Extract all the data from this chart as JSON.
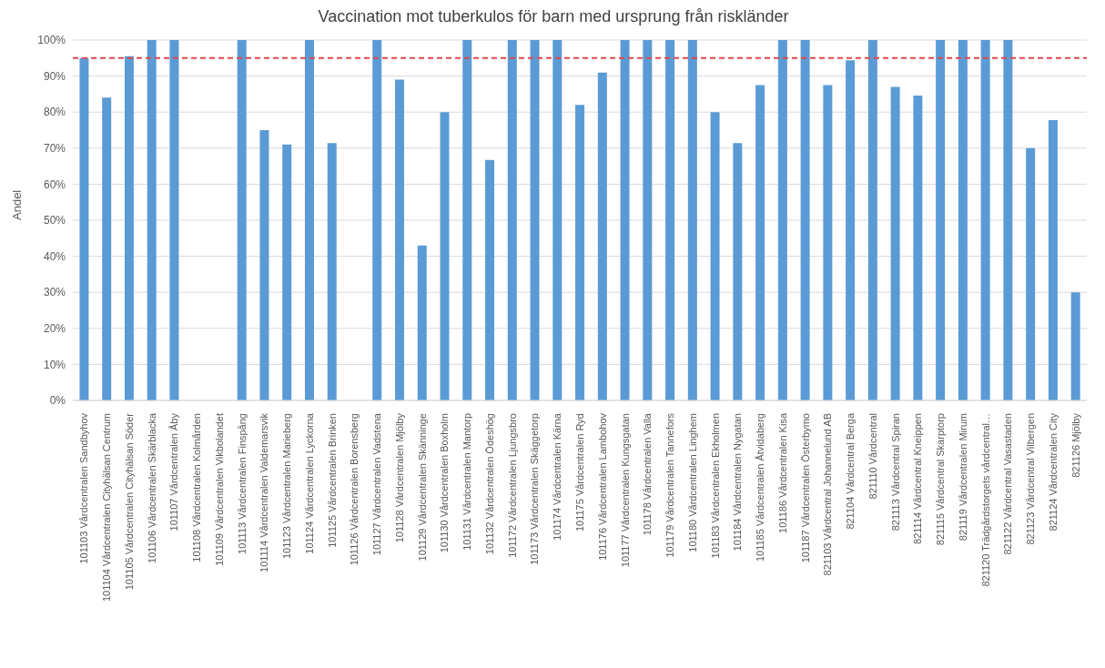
{
  "chart_data": {
    "type": "bar",
    "title": "Vaccination mot tuberkulos för barn med ursprung från riskländer",
    "ylabel": "Andel",
    "categories": [
      "101103 Vårdcentralen Sandbyhov",
      "101104 Vårdcentralen Cityhälsan Centrum",
      "101105 Vårdcentralen Cityhälsan Söder",
      "101106 Vårdcentralen Skärblacka",
      "101107 Vårdcentralen Åby",
      "101108 Vårdcentralen Kolmården",
      "101109 Vårdcentralen Vikbolandet",
      "101113 Vårdcentralen Finspång",
      "101114 Vårdcentralen Valdemarsvik",
      "101123 Vårdcentralen Marieberg",
      "101124 Vårdcentralen Lyckorna",
      "101125 Vårdcentralen Brinken",
      "101126 Vårdcentralen Borensberg",
      "101127 Vårdcentralen Vadstena",
      "101128 Vårdcentralen Mjölby",
      "101129 Vårdcentralen Skänninge",
      "101130 Vårdcentralen Boxholm",
      "101131 Vårdcentralen Mantorp",
      "101132 Vårdcentralen Ödeshög",
      "101172 Vårdcentralen Ljungsbro",
      "101173 Vårdcentralen Skäggetorp",
      "101174 Vårdcentralen Kärna",
      "101175 Vårdcentralen Ryd",
      "101176 Vårdcentralen Lambohov",
      "101177 Vårdcentralen Kungsgatan",
      "101178 Vårdcentralen Valla",
      "101179 Vårdcentralen Tannefors",
      "101180 Vårdcentralen Linghem",
      "101183 Vårdcentralen Ekholmen",
      "101184 Vårdcentralen Nygatan",
      "101185 Vårdcentralen Åtvidaberg",
      "101186 Vårdcentralen Kisa",
      "101187 Vårdcentralen Österbymo",
      "821103 Vårdcentral Johannelund AB",
      "821104 Vårdcentral Berga",
      "821110 Vårdcentral",
      "821113 Vårdcentral Spiran",
      "821114 Vårdcentral Kneippen",
      "821115 Vårdcentral Skarptorp",
      "821119 Vårdcentralen Mirum",
      "821120 Trädgårdstorgets vårdcentral…",
      "821122 Vårdcentral Vasastaden",
      "821123 Vårdcentral Vilbergen",
      "821124 Vårdcentralen City",
      "821126 Mjölby"
    ],
    "values": [
      95,
      84,
      95.5,
      100,
      100,
      null,
      null,
      100,
      75,
      71,
      100,
      71.4,
      null,
      100,
      89,
      43,
      80,
      100,
      66.7,
      100,
      100,
      100,
      82,
      91,
      100,
      100,
      100,
      100,
      80,
      71.4,
      87.5,
      100,
      100,
      87.5,
      94.4,
      100,
      87,
      84.6,
      100,
      100,
      100,
      100,
      70,
      77.8,
      30
    ],
    "color": "#5b9bd5",
    "ylim": [
      0,
      100
    ],
    "yticks": [
      {
        "value": 0,
        "label": "0%"
      },
      {
        "value": 10,
        "label": "10%"
      },
      {
        "value": 20,
        "label": "20%"
      },
      {
        "value": 30,
        "label": "30%"
      },
      {
        "value": 40,
        "label": "40%"
      },
      {
        "value": 50,
        "label": "50%"
      },
      {
        "value": 60,
        "label": "60%"
      },
      {
        "value": 70,
        "label": "70%"
      },
      {
        "value": 80,
        "label": "80%"
      },
      {
        "value": 90,
        "label": "90%"
      },
      {
        "value": 100,
        "label": "100%"
      }
    ],
    "grid": "y",
    "ref_lines": [
      {
        "axis": "y",
        "value": 95,
        "color": "#e0474c",
        "line_style": "dashed"
      }
    ]
  }
}
